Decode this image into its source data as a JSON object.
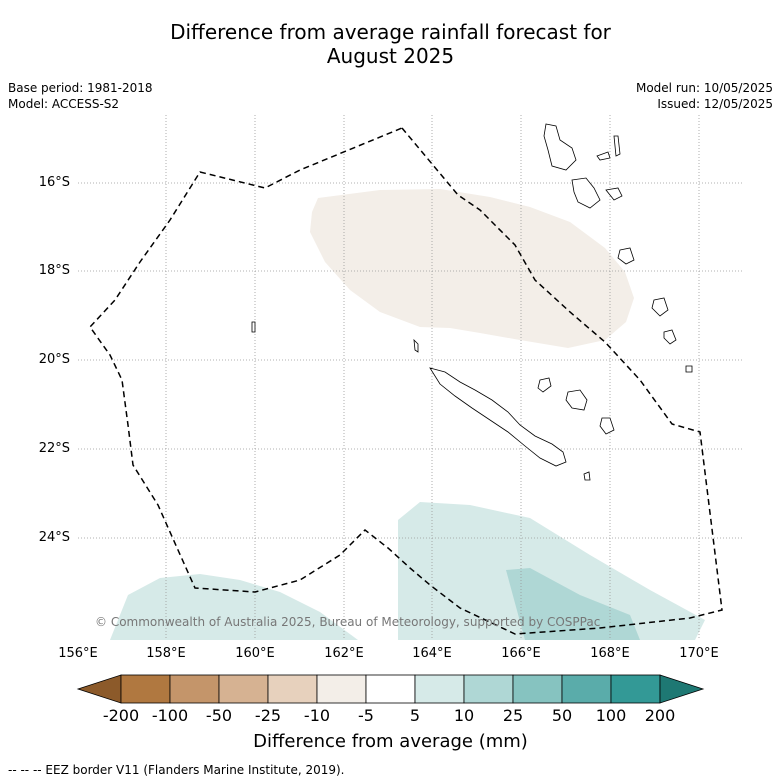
{
  "title_line1": "Difference from average rainfall forecast for",
  "title_line2": "August 2025",
  "meta_left": {
    "line1": "Base period: 1981-2018",
    "line2": "Model: ACCESS-S2"
  },
  "meta_right": {
    "line1": "Model run: 10/05/2025",
    "line2": "Issued: 12/05/2025"
  },
  "latitude_labels": [
    "16°S",
    "18°S",
    "20°S",
    "22°S",
    "24°S"
  ],
  "longitude_labels": [
    "156°E",
    "158°E",
    "160°E",
    "162°E",
    "164°E",
    "166°E",
    "168°E",
    "170°E"
  ],
  "copyright": "© Commonwealth of Australia 2025, Bureau of Meteorology, supported by COSPPac",
  "colorbar": {
    "title": "Difference from average (mm)",
    "tick_labels": [
      "-200",
      "-100",
      "-50",
      "-25",
      "-10",
      "-5",
      "5",
      "10",
      "25",
      "50",
      "100",
      "200"
    ],
    "colors": [
      "#8c5a2a",
      "#b07840",
      "#c4956a",
      "#d6b292",
      "#e7d1bd",
      "#f3eee8",
      "#ffffff",
      "#d6eae8",
      "#afd7d5",
      "#86c3c0",
      "#5aacaa",
      "#339996",
      "#1e7873"
    ]
  },
  "footnote": "--  --  -- EEZ border V11 (Flanders Marine Institute, 2019)."
}
